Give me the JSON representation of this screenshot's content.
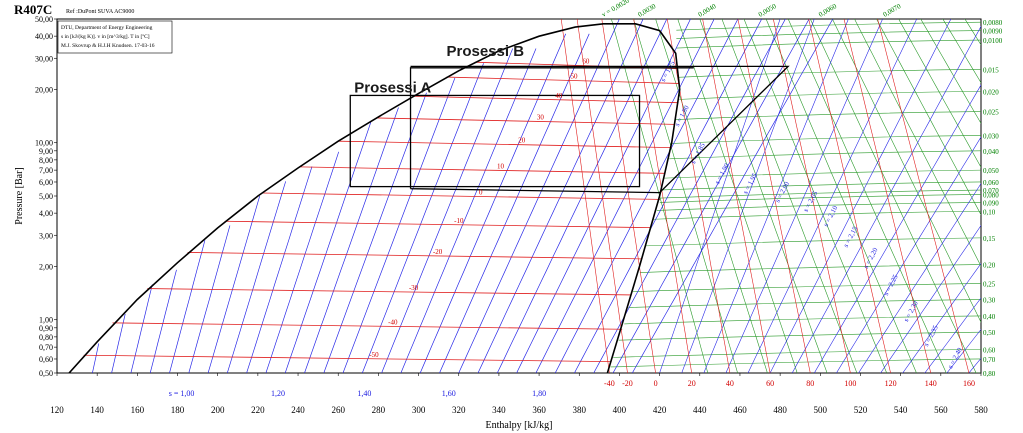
{
  "chart_data": {
    "type": "line",
    "title": "R407C",
    "subtitle": "Ref :DuPont SUVA AC9000",
    "info_lines": [
      "DTU, Department of Energy Engineering",
      "s in [kJ/(kg K)]. v in [m^3/kg]. T in [ºC]",
      "M.J. Skovrup & H.J.H Knudsen. 17-03-16"
    ],
    "xlabel": "Enthalpy [kJ/kg]",
    "ylabel": "Pressure [Bar]",
    "xlim": [
      120,
      580
    ],
    "ylim": [
      0.5,
      50
    ],
    "yscale": "log",
    "grid": false,
    "x_ticks": [
      120,
      140,
      160,
      180,
      200,
      220,
      240,
      260,
      280,
      300,
      320,
      340,
      360,
      380,
      400,
      420,
      440,
      460,
      480,
      500,
      520,
      540,
      560,
      580
    ],
    "y_ticks": [
      {
        "v": 0.5,
        "label": "0,50"
      },
      {
        "v": 0.6,
        "label": "0,60"
      },
      {
        "v": 0.7,
        "label": "0,70"
      },
      {
        "v": 0.8,
        "label": "0,80"
      },
      {
        "v": 0.9,
        "label": "0,90"
      },
      {
        "v": 1.0,
        "label": "1,00"
      },
      {
        "v": 2.0,
        "label": "2,00"
      },
      {
        "v": 3.0,
        "label": "3,00"
      },
      {
        "v": 4.0,
        "label": "4,00"
      },
      {
        "v": 5.0,
        "label": "5,00"
      },
      {
        "v": 6.0,
        "label": "6,00"
      },
      {
        "v": 7.0,
        "label": "7,00"
      },
      {
        "v": 8.0,
        "label": "8,00"
      },
      {
        "v": 9.0,
        "label": "9,00"
      },
      {
        "v": 10.0,
        "label": "10,00"
      },
      {
        "v": 20.0,
        "label": "20,00"
      },
      {
        "v": 30.0,
        "label": "30,00"
      },
      {
        "v": 40.0,
        "label": "40,00"
      },
      {
        "v": 50.0,
        "label": "50,00"
      }
    ],
    "saturation_liquid": [
      {
        "h": 126,
        "p": 0.5
      },
      {
        "h": 140,
        "p": 0.75
      },
      {
        "h": 160,
        "p": 1.3
      },
      {
        "h": 180,
        "p": 2.1
      },
      {
        "h": 200,
        "p": 3.3
      },
      {
        "h": 220,
        "p": 5.0
      },
      {
        "h": 240,
        "p": 7.2
      },
      {
        "h": 260,
        "p": 10.2
      },
      {
        "h": 280,
        "p": 14.0
      },
      {
        "h": 300,
        "p": 19.0
      },
      {
        "h": 320,
        "p": 25.5
      },
      {
        "h": 340,
        "p": 33.0
      },
      {
        "h": 360,
        "p": 40.0
      },
      {
        "h": 378,
        "p": 45.0
      },
      {
        "h": 392,
        "p": 47.0
      }
    ],
    "saturation_vapor": [
      {
        "h": 408,
        "p": 47.0
      },
      {
        "h": 420,
        "p": 43.0
      },
      {
        "h": 428,
        "p": 32.0
      },
      {
        "h": 430,
        "p": 20.0
      },
      {
        "h": 426,
        "p": 10.0
      },
      {
        "h": 420,
        "p": 5.0
      },
      {
        "h": 410,
        "p": 2.0
      },
      {
        "h": 402,
        "p": 1.0
      },
      {
        "h": 394,
        "p": 0.5
      }
    ],
    "isotherms": [
      {
        "t": -50,
        "label": "-50",
        "p": 0.63
      },
      {
        "t": -40,
        "label": "-40",
        "p": 0.96
      },
      {
        "t": -30,
        "label": "-30",
        "p": 1.5
      },
      {
        "t": -20,
        "label": "-20",
        "p": 2.4
      },
      {
        "t": -10,
        "label": "-10",
        "p": 3.6
      },
      {
        "t": 0,
        "label": "0",
        "p": 5.2
      },
      {
        "t": 10,
        "label": "10",
        "p": 7.3
      },
      {
        "t": 20,
        "label": "20",
        "p": 10.2
      },
      {
        "t": 30,
        "label": "30",
        "p": 13.8
      },
      {
        "t": 40,
        "label": "40",
        "p": 18.3
      },
      {
        "t": 50,
        "label": "50",
        "p": 23.5
      },
      {
        "t": 60,
        "label": "60",
        "p": 28.5
      }
    ],
    "temp_bottom_labels": [
      {
        "h": 395,
        "label": "-40"
      },
      {
        "h": 404,
        "label": "-20"
      },
      {
        "h": 418,
        "label": "0"
      },
      {
        "h": 436,
        "label": "20"
      },
      {
        "h": 455,
        "label": "40"
      },
      {
        "h": 475,
        "label": "60"
      },
      {
        "h": 495,
        "label": "80"
      },
      {
        "h": 515,
        "label": "100"
      },
      {
        "h": 535,
        "label": "120"
      },
      {
        "h": 555,
        "label": "140"
      },
      {
        "h": 574,
        "label": "160"
      }
    ],
    "entropy_bottom_labels": [
      {
        "h": 182,
        "label": "s = 1,00"
      },
      {
        "h": 230,
        "label": "1,20"
      },
      {
        "h": 273,
        "label": "1,40"
      },
      {
        "h": 315,
        "label": "1,60"
      },
      {
        "h": 360,
        "label": "1,80"
      }
    ],
    "entropy_vapor_labels": [
      {
        "h": 425,
        "p": 25.0,
        "label": "s = 1,75"
      },
      {
        "h": 432,
        "p": 14.0,
        "label": "s = 1,80"
      },
      {
        "h": 440,
        "p": 8.6,
        "label": "s = 1,85"
      },
      {
        "h": 452,
        "p": 6.6,
        "label": "s = 1,90"
      },
      {
        "h": 466,
        "p": 5.8,
        "label": "s = 1,95"
      },
      {
        "h": 482,
        "p": 5.2,
        "label": "s = 2,00"
      },
      {
        "h": 496,
        "p": 4.6,
        "label": "s = 2,05"
      },
      {
        "h": 506,
        "p": 3.8,
        "label": "s = 2,10"
      },
      {
        "h": 516,
        "p": 2.9,
        "label": "s = 2,15"
      },
      {
        "h": 526,
        "p": 2.2,
        "label": "s = 2,20"
      },
      {
        "h": 536,
        "p": 1.55,
        "label": "s = 2,25"
      },
      {
        "h": 546,
        "p": 1.1,
        "label": "s = 2,30"
      },
      {
        "h": 556,
        "p": 0.8,
        "label": "s = 2,35"
      },
      {
        "h": 568,
        "p": 0.6,
        "label": "s = 2,40"
      }
    ],
    "volume_top_labels": [
      {
        "h": 392,
        "label": "v = 0,0020"
      },
      {
        "h": 410,
        "label": "0,0030"
      },
      {
        "h": 440,
        "label": "0,0040"
      },
      {
        "h": 470,
        "label": "0,0050"
      },
      {
        "h": 500,
        "label": "0,0060"
      },
      {
        "h": 532,
        "label": "0,0070"
      }
    ],
    "volume_right_labels": [
      {
        "p": 48.0,
        "label": "0,0080"
      },
      {
        "p": 43.0,
        "label": "0,0090"
      },
      {
        "p": 38.0,
        "label": "0,0100"
      },
      {
        "p": 26.0,
        "label": "0,015"
      },
      {
        "p": 19.5,
        "label": "0,020"
      },
      {
        "p": 15.0,
        "label": "0,025"
      },
      {
        "p": 11.0,
        "label": "0,030"
      },
      {
        "p": 9.0,
        "label": "0,040"
      },
      {
        "p": 7.0,
        "label": "0,050"
      },
      {
        "p": 6.0,
        "label": "0,060"
      },
      {
        "p": 5.4,
        "label": "0,070"
      },
      {
        "p": 5.1,
        "label": "0,080"
      },
      {
        "p": 4.6,
        "label": "0,090"
      },
      {
        "p": 4.1,
        "label": "0,10"
      },
      {
        "p": 2.9,
        "label": "0,15"
      },
      {
        "p": 2.05,
        "label": "0,20"
      },
      {
        "p": 1.6,
        "label": "0,25"
      },
      {
        "p": 1.3,
        "label": "0,30"
      },
      {
        "p": 1.05,
        "label": "0,40"
      },
      {
        "p": 0.85,
        "label": "0,50"
      },
      {
        "p": 0.68,
        "label": "0,60"
      },
      {
        "p": 0.6,
        "label": "0,70"
      },
      {
        "p": 0.5,
        "label": "0,80"
      }
    ],
    "processes": [
      {
        "name": "Prosessi A",
        "h_left": 266,
        "h_right": 410,
        "p_low": 5.65,
        "p_high": 18.5
      },
      {
        "name": "Prosessi B",
        "h_left": 296,
        "h_mid": 420,
        "h_right": 437,
        "p_low": 5.5,
        "p_high": 26.5,
        "p_comp_out": 27.0,
        "h_comp_out": 484
      }
    ]
  }
}
